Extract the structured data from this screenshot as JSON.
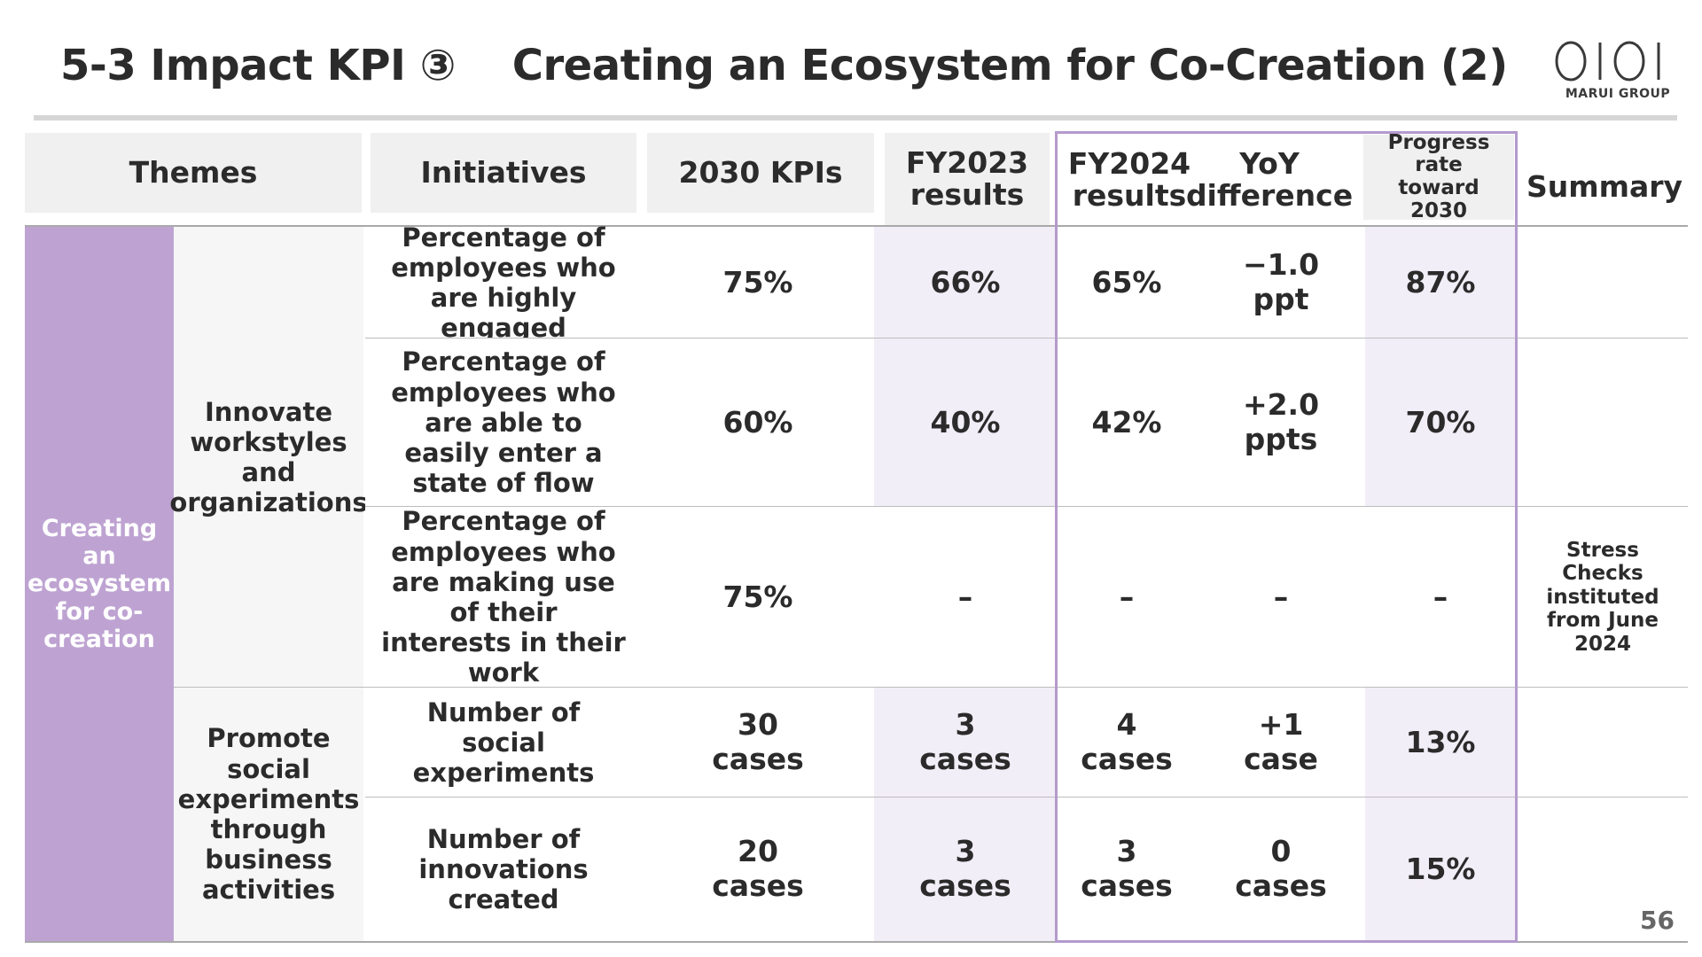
{
  "slide": {
    "title_left": "5-3 Impact KPI ③",
    "title_right": "Creating an Ecosystem for Co-Creation (2)",
    "logo_sub": "MARUI GROUP",
    "logo_icon": "marui-oioi-logo",
    "page_number": "56"
  },
  "colors": {
    "theme_fill": "#bea3d2",
    "highlight_border": "#b49acd",
    "header_fill": "#f0f0f0",
    "highlight_fill": "#f2eef7"
  },
  "table": {
    "headers": {
      "themes": "Themes",
      "initiatives": "Initiatives",
      "kpis": "2030 KPIs",
      "fy2023": "FY2023 results",
      "fy2024": "FY2024 results",
      "yoy": "YoY difference",
      "progress": "Progress rate toward 2030",
      "summary": "Summary"
    },
    "theme": "Creating an ecosystem for co-creation",
    "initiatives": [
      "Innovate workstyles and organizations",
      "Promote social experiments through business activities"
    ],
    "rows": [
      {
        "kpi": "Percentage of employees who are highly engaged",
        "target": "75%",
        "fy2023": "66%",
        "fy2024": "65%",
        "yoy": "−1.0 ppt",
        "progress": "87%",
        "summary": ""
      },
      {
        "kpi": "Percentage of employees who are able to easily enter a state of flow",
        "target": "60%",
        "fy2023": "40%",
        "fy2024": "42%",
        "yoy": "+2.0 ppts",
        "progress": "70%",
        "summary": ""
      },
      {
        "kpi": "Percentage of employees who are making use of their interests in their work",
        "target": "75%",
        "fy2023": "–",
        "fy2024": "–",
        "yoy": "–",
        "progress": "–",
        "summary": "Stress Checks instituted from June 2024"
      },
      {
        "kpi": "Number of social experiments",
        "target": "30 cases",
        "fy2023": "3 cases",
        "fy2024": "4 cases",
        "yoy": "+1 case",
        "progress": "13%",
        "summary": ""
      },
      {
        "kpi": "Number of innovations created",
        "target": "20 cases",
        "fy2023": "3 cases",
        "fy2024": "3 cases",
        "yoy": "0 cases",
        "progress": "15%",
        "summary": ""
      }
    ]
  }
}
